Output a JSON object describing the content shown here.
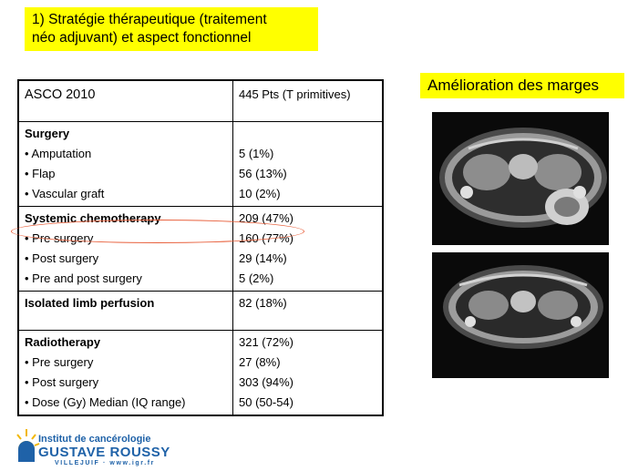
{
  "title": {
    "line1": "1) Stratégie thérapeutique (traitement",
    "line2": "néo adjuvant) et aspect fonctionnel"
  },
  "subtitle": "Amélioration des marges",
  "table": {
    "header": {
      "label": "ASCO 2010",
      "value": "445 Pts (T primitives)"
    },
    "sections": [
      {
        "heading": "Surgery",
        "heading_value": "",
        "items": [
          {
            "label": "• Amputation",
            "value": "5 (1%)"
          },
          {
            "label": "• Flap",
            "value": "56 (13%)"
          },
          {
            "label": "• Vascular graft",
            "value": "10 (2%)"
          }
        ]
      },
      {
        "heading": "Systemic chemotherapy",
        "heading_value": "209 (47%)",
        "items": [
          {
            "label": "• Pre surgery",
            "value": "160 (77%)"
          },
          {
            "label": "• Post surgery",
            "value": "29 (14%)"
          },
          {
            "label": "• Pre and post surgery",
            "value": "5 (2%)"
          }
        ]
      },
      {
        "heading": "Isolated limb perfusion",
        "heading_value": "82 (18%)",
        "items": []
      },
      {
        "heading": "Radiotherapy",
        "heading_value": "321 (72%)",
        "items": [
          {
            "label": "• Pre surgery",
            "value": "27 (8%)"
          },
          {
            "label": "• Post surgery",
            "value": "303 (94%)"
          },
          {
            "label": "• Dose (Gy) Median (IQ range)",
            "value": "50 (50-54)"
          }
        ]
      }
    ]
  },
  "logo": {
    "line1": "Institut de cancérologie",
    "line2": "GUSTAVE ROUSSY",
    "line3": "VILLEJUIF · www.igr.fr"
  },
  "colors": {
    "highlight": "#ffff00",
    "annotation_circle": "#e8603c",
    "logo_blue": "#1f62a8",
    "logo_yellow": "#f2b705"
  }
}
